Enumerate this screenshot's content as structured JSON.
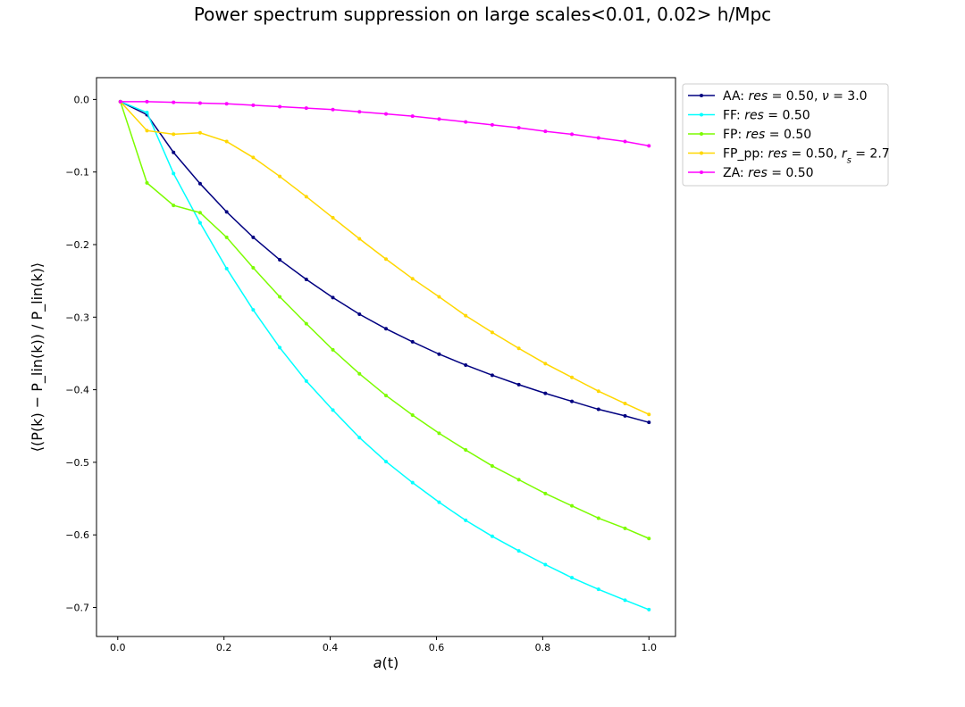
{
  "chart_data": {
    "type": "line",
    "title": "Power spectrum suppression on large scales<0.01, 0.02> h/Mpc",
    "xlabel": {
      "base": "a",
      "paren": "(t)"
    },
    "ylabel": {
      "text": "⟨(P(k) − P_lin(k)) / P_lin(k)⟩"
    },
    "xlim": [
      -0.04,
      1.05
    ],
    "ylim": [
      -0.74,
      0.03
    ],
    "xticks": [
      0.0,
      0.2,
      0.4,
      0.6,
      0.8,
      1.0
    ],
    "xtick_labels": [
      "0.0",
      "0.2",
      "0.4",
      "0.6",
      "0.8",
      "1.0"
    ],
    "yticks": [
      0.0,
      -0.1,
      -0.2,
      -0.3,
      -0.4,
      -0.5,
      -0.6,
      -0.7
    ],
    "ytick_labels": [
      "0.0",
      "−0.1",
      "−0.2",
      "−0.3",
      "−0.4",
      "−0.5",
      "−0.6",
      "−0.7"
    ],
    "grid": false,
    "legend_position": "outside-top-right",
    "x": [
      0.005,
      0.055,
      0.105,
      0.155,
      0.205,
      0.255,
      0.305,
      0.355,
      0.405,
      0.455,
      0.505,
      0.555,
      0.605,
      0.655,
      0.705,
      0.755,
      0.805,
      0.855,
      0.905,
      0.955,
      1.0
    ],
    "series": [
      {
        "name": "AA: res = 0.50, ν = 3.0",
        "legend": [
          {
            "t": "AA: "
          },
          {
            "t": "res",
            "i": true
          },
          {
            "t": " = 0.50, "
          },
          {
            "t": "ν",
            "i": true
          },
          {
            "t": " = 3.0"
          }
        ],
        "color": "#000080",
        "values": [
          -0.003,
          -0.021,
          -0.073,
          -0.116,
          -0.155,
          -0.19,
          -0.221,
          -0.248,
          -0.273,
          -0.296,
          -0.316,
          -0.334,
          -0.351,
          -0.366,
          -0.38,
          -0.393,
          -0.405,
          -0.416,
          -0.427,
          -0.436,
          -0.445
        ]
      },
      {
        "name": "FF: res = 0.50",
        "legend": [
          {
            "t": "FF: "
          },
          {
            "t": "res",
            "i": true
          },
          {
            "t": " = 0.50"
          }
        ],
        "color": "#00ffff",
        "values": [
          -0.003,
          -0.018,
          -0.102,
          -0.17,
          -0.233,
          -0.29,
          -0.342,
          -0.388,
          -0.428,
          -0.466,
          -0.499,
          -0.528,
          -0.555,
          -0.58,
          -0.602,
          -0.622,
          -0.641,
          -0.659,
          -0.675,
          -0.69,
          -0.703
        ]
      },
      {
        "name": "FP: res = 0.50",
        "legend": [
          {
            "t": "FP: "
          },
          {
            "t": "res",
            "i": true
          },
          {
            "t": " = 0.50"
          }
        ],
        "color": "#7cfc00",
        "values": [
          -0.003,
          -0.115,
          -0.146,
          -0.156,
          -0.19,
          -0.232,
          -0.272,
          -0.309,
          -0.345,
          -0.378,
          -0.408,
          -0.435,
          -0.46,
          -0.483,
          -0.505,
          -0.524,
          -0.543,
          -0.56,
          -0.577,
          -0.591,
          -0.605
        ]
      },
      {
        "name": "FP_pp: res = 0.50, r_s = 2.7",
        "legend": [
          {
            "t": "FP_pp: "
          },
          {
            "t": "res",
            "i": true
          },
          {
            "t": " = 0.50, "
          },
          {
            "t": "r",
            "i": true
          },
          {
            "t": "s",
            "i": true,
            "sub": true
          },
          {
            "t": " = 2.7"
          }
        ],
        "color": "#ffd700",
        "values": [
          -0.003,
          -0.043,
          -0.048,
          -0.046,
          -0.058,
          -0.08,
          -0.106,
          -0.134,
          -0.163,
          -0.192,
          -0.22,
          -0.247,
          -0.272,
          -0.298,
          -0.321,
          -0.343,
          -0.364,
          -0.383,
          -0.402,
          -0.419,
          -0.434
        ]
      },
      {
        "name": "ZA: res = 0.50",
        "legend": [
          {
            "t": "ZA: "
          },
          {
            "t": "res",
            "i": true
          },
          {
            "t": " = 0.50"
          }
        ],
        "color": "#ff00ff",
        "values": [
          -0.003,
          -0.003,
          -0.004,
          -0.005,
          -0.006,
          -0.008,
          -0.01,
          -0.012,
          -0.014,
          -0.017,
          -0.02,
          -0.023,
          -0.027,
          -0.031,
          -0.035,
          -0.039,
          -0.044,
          -0.048,
          -0.053,
          -0.058,
          -0.064
        ]
      }
    ]
  }
}
